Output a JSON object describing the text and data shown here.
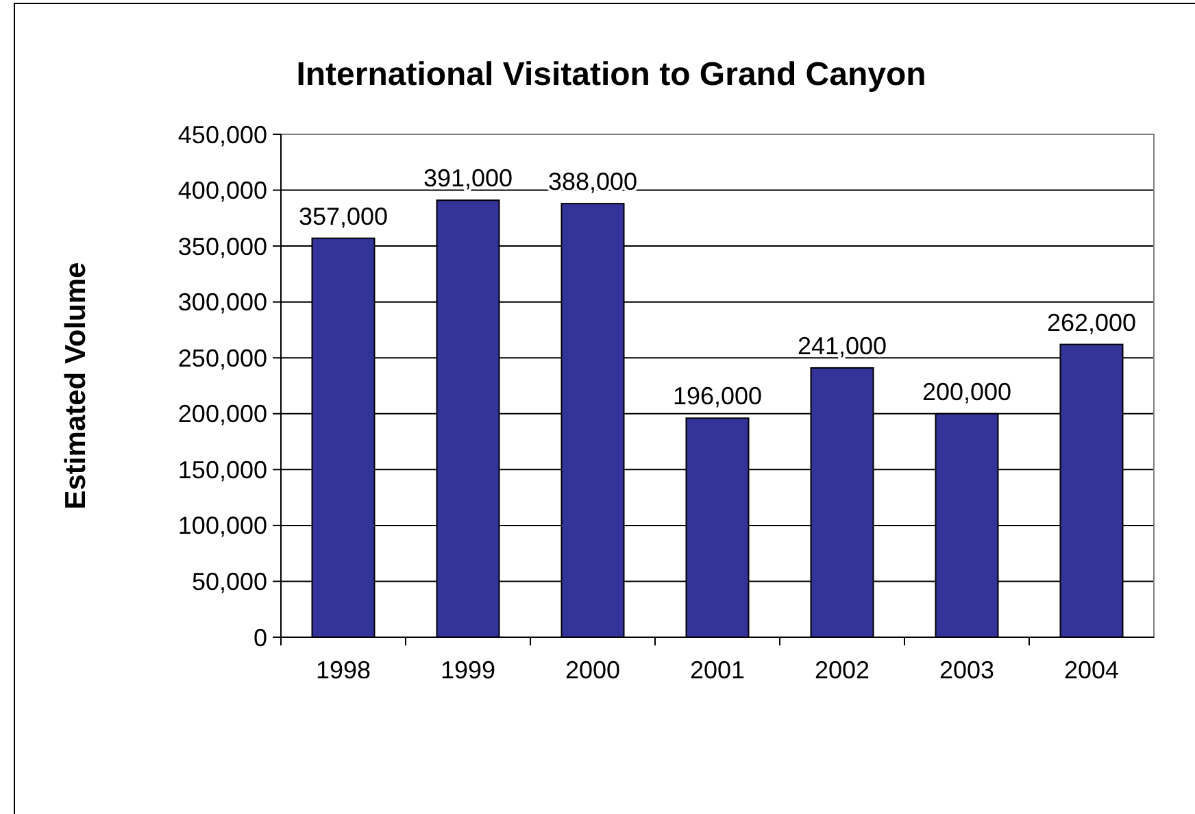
{
  "chart_data": {
    "type": "bar",
    "title": "International Visitation to Grand Canyon",
    "ylabel": "Estimated Volume",
    "categories": [
      "1998",
      "1999",
      "2000",
      "2001",
      "2002",
      "2003",
      "2004"
    ],
    "values": [
      357000,
      391000,
      388000,
      196000,
      241000,
      200000,
      262000
    ],
    "value_labels": [
      "357,000",
      "391,000",
      "388,000",
      "196,000",
      "241,000",
      "200,000",
      "262,000"
    ],
    "color": "#333399",
    "ylim": [
      0,
      450000
    ],
    "yticks": [
      {
        "value": 0,
        "label": "0"
      },
      {
        "value": 50000,
        "label": "50,000"
      },
      {
        "value": 100000,
        "label": "100,000"
      },
      {
        "value": 150000,
        "label": "150,000"
      },
      {
        "value": 200000,
        "label": "200,000"
      },
      {
        "value": 250000,
        "label": "250,000"
      },
      {
        "value": 300000,
        "label": "300,000"
      },
      {
        "value": 350000,
        "label": "350,000"
      },
      {
        "value": 400000,
        "label": "400,000"
      },
      {
        "value": 450000,
        "label": "450,000"
      }
    ],
    "grid": "y"
  }
}
